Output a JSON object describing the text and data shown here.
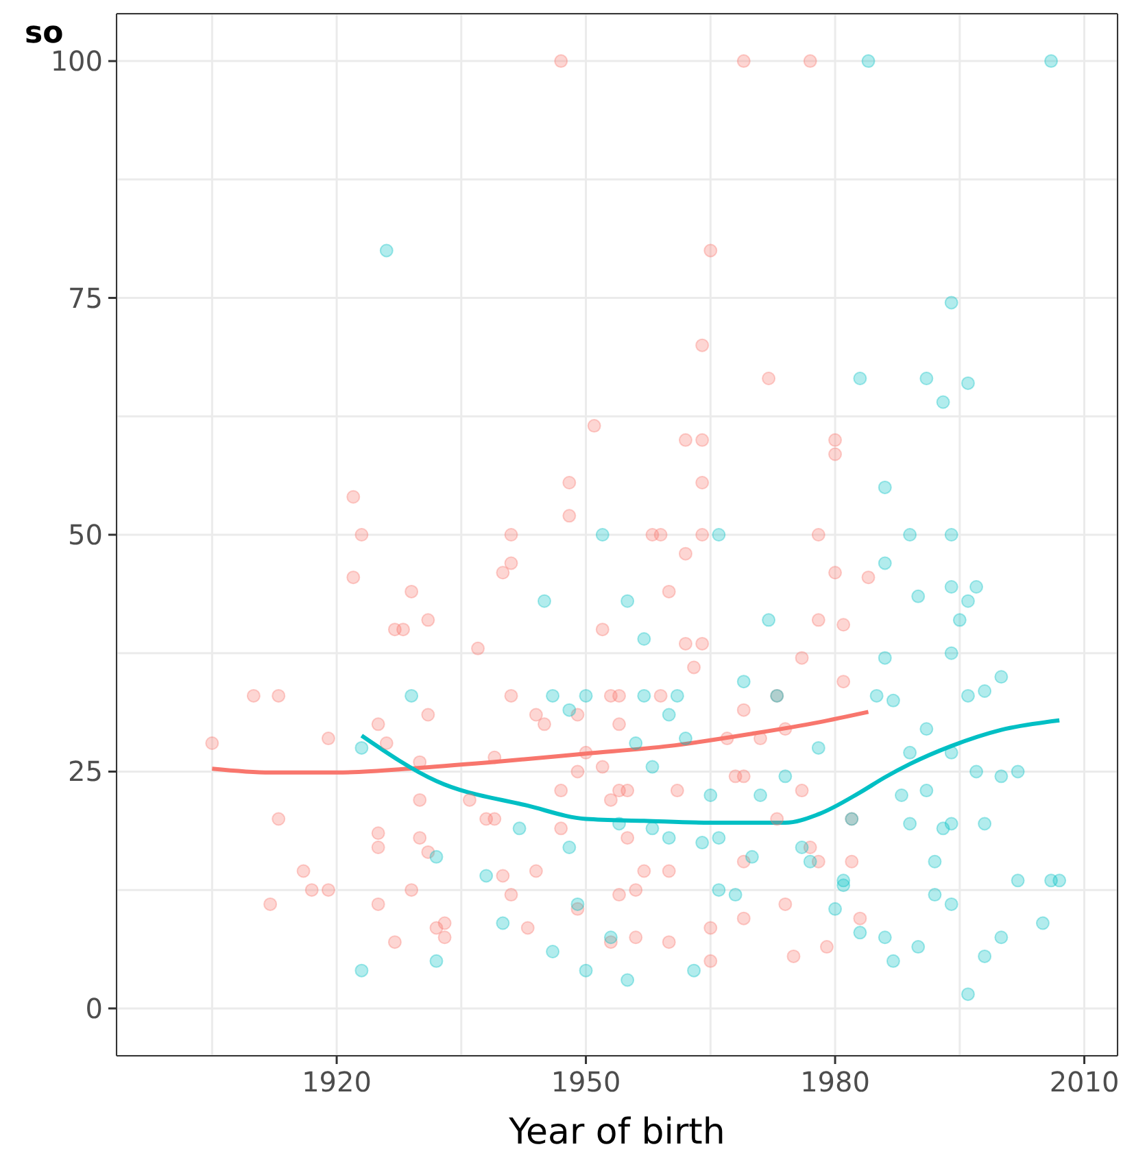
{
  "chart_data": {
    "type": "scatter",
    "xlabel": "Year of birth",
    "ylabel": "so",
    "xlim": [
      1893.5,
      2014
    ],
    "ylim": [
      -5,
      105
    ],
    "xticks": [
      {
        "value": 1905,
        "label": null
      },
      1920,
      {
        "value": 1935,
        "label": null
      },
      1950,
      {
        "value": 1965,
        "label": null
      },
      1980,
      {
        "value": 1995,
        "label": null
      },
      2010
    ],
    "yticks": [
      0,
      {
        "value": 12.5,
        "label": null
      },
      25,
      {
        "value": 37.5,
        "label": null
      },
      50,
      {
        "value": 62.5,
        "label": null
      },
      75,
      {
        "value": 87.5,
        "label": null
      },
      100
    ],
    "grid": true,
    "series": [
      {
        "marker": "circle",
        "color": "#f8766d",
        "x": [
          1905,
          1910,
          1913,
          1912,
          1913,
          1916,
          1917,
          1919,
          1919,
          1922,
          1923,
          1922,
          1925,
          1925,
          1925,
          1925,
          1926,
          1927,
          1928,
          1927,
          1929,
          1929,
          1930,
          1930,
          1930,
          1931,
          1931,
          1931,
          1932,
          1933,
          1933,
          1936,
          1937,
          1938,
          1939,
          1939,
          1940,
          1941,
          1941,
          1940,
          1941,
          1941,
          1944,
          1945,
          1947,
          1947,
          1948,
          1948,
          1949,
          1949,
          1951,
          1952,
          1953,
          1954,
          1952,
          1953,
          1954,
          1955,
          1955,
          1954,
          1956,
          1958,
          1959,
          1960,
          1959,
          1962,
          1962,
          1962,
          1964,
          1964,
          1964,
          1964,
          1965,
          1964,
          1965,
          1965,
          1969,
          1969,
          1969,
          1969,
          1969,
          1972,
          1973,
          1974,
          1976,
          1977,
          1978,
          1978,
          1978,
          1980,
          1980,
          1980,
          1981,
          1981,
          1982,
          1983,
          1984,
          1982,
          1979,
          1977,
          1976,
          1971,
          1961,
          1960,
          1960,
          1957,
          1956,
          1953,
          1947,
          1944,
          1943,
          1949,
          1950,
          1954,
          1963,
          1967,
          1968,
          1973,
          1974,
          1975
        ],
        "values": [
          28,
          33,
          33,
          11,
          20,
          14.5,
          12.5,
          12.5,
          28.5,
          54,
          50,
          45.5,
          30,
          18.5,
          17,
          11,
          28,
          40,
          40,
          7,
          44,
          12.5,
          26,
          22,
          18,
          41,
          31,
          16.5,
          8.5,
          9,
          7.5,
          22,
          38,
          20,
          20,
          26.5,
          46,
          47,
          50,
          14,
          12,
          33,
          31,
          30,
          23,
          100,
          55.5,
          52,
          25,
          10.5,
          61.5,
          40,
          33,
          33,
          25.5,
          22,
          23,
          23,
          18,
          12,
          12.5,
          50,
          50,
          44,
          33,
          48,
          60,
          38.5,
          50,
          55.5,
          60,
          70,
          80,
          38.5,
          8.5,
          5,
          100,
          31.5,
          24.5,
          15.5,
          9.5,
          66.5,
          33,
          29.5,
          37,
          100,
          50,
          41,
          15.5,
          60,
          58.5,
          46,
          40.5,
          34.5,
          15.5,
          9.5,
          45.5,
          20,
          6.5,
          17,
          23,
          28.5,
          23,
          14.5,
          7,
          14.5,
          7.5,
          7,
          19,
          14.5,
          8.5,
          31,
          27,
          30,
          36,
          28.5,
          24.5,
          20,
          11,
          5.5
        ]
      },
      {
        "marker": "circle",
        "color": "#00bfc4",
        "x": [
          1926,
          1923,
          1923,
          1929,
          1932,
          1932,
          1938,
          1940,
          1942,
          1945,
          1946,
          1946,
          1948,
          1950,
          1948,
          1949,
          1950,
          1952,
          1953,
          1954,
          1955,
          1955,
          1957,
          1957,
          1956,
          1958,
          1958,
          1960,
          1960,
          1961,
          1962,
          1963,
          1964,
          1966,
          1966,
          1965,
          1966,
          1968,
          1969,
          1970,
          1971,
          1972,
          1973,
          1974,
          1976,
          1977,
          1978,
          1981,
          1980,
          1984,
          1983,
          1986,
          1986,
          1987,
          1988,
          1989,
          1989,
          1989,
          1990,
          1990,
          1987,
          1991,
          1991,
          1993,
          1991,
          1993,
          1994,
          1994,
          1994,
          1994,
          1994,
          1994,
          1994,
          1995,
          1996,
          1996,
          1997,
          1996,
          1998,
          1998,
          1998,
          2000,
          2000,
          2000,
          2002,
          2002,
          2005,
          2006,
          2006,
          2007,
          1996,
          1997,
          1986,
          1985,
          1982,
          1981,
          1983,
          1986,
          1992,
          1992
        ],
        "values": [
          80,
          27.5,
          4,
          33,
          16,
          5,
          14,
          9,
          19,
          43,
          33,
          6,
          31.5,
          33,
          17,
          11,
          4,
          50,
          7.5,
          19.5,
          43,
          3,
          33,
          39,
          28,
          25.5,
          19,
          31,
          18,
          33,
          28.5,
          4,
          17.5,
          50,
          18,
          22.5,
          12.5,
          12,
          34.5,
          16,
          22.5,
          41,
          33,
          24.5,
          17,
          15.5,
          27.5,
          13,
          10.5,
          100,
          66.5,
          55,
          47,
          32.5,
          22.5,
          19.5,
          27,
          50,
          43.5,
          6.5,
          5,
          29.5,
          23,
          19,
          66.5,
          64,
          74.5,
          50,
          44.5,
          37.5,
          27,
          19.5,
          11,
          41,
          66,
          43,
          44.5,
          1.5,
          33.5,
          19.5,
          5.5,
          7.5,
          35,
          24.5,
          13.5,
          25,
          9,
          100,
          13.5,
          13.5,
          33,
          25,
          37,
          33,
          20,
          13.5,
          8,
          7.5,
          15.5,
          12
        ]
      },
      {
        "type": "line",
        "marker": "none",
        "color": "#f8766d",
        "x": [
          1905,
          1912,
          1920,
          1930,
          1940,
          1950,
          1960,
          1970,
          1978,
          1984
        ],
        "values": [
          25.3,
          24.9,
          24.9,
          25.4,
          26.1,
          26.9,
          27.7,
          29,
          30.2,
          31.3
        ]
      },
      {
        "type": "line",
        "marker": "none",
        "color": "#00bfc4",
        "x": [
          1923,
          1932,
          1943,
          1950,
          1957,
          1965,
          1974,
          1978,
          1983,
          1986,
          1989,
          1994,
          2000,
          2007
        ],
        "values": [
          28.8,
          24,
          21.4,
          20,
          19.8,
          19.6,
          19.6,
          20.5,
          22.8,
          24.4,
          25.8,
          27.7,
          29.4,
          30.4
        ]
      }
    ]
  }
}
